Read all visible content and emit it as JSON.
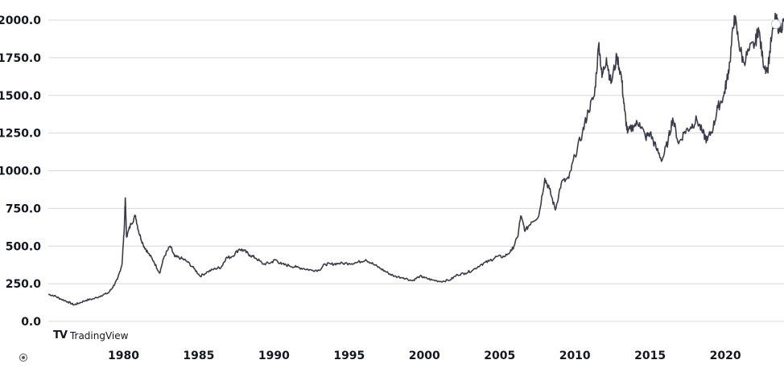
{
  "chart_data": {
    "type": "line",
    "title": "",
    "xlabel": "",
    "ylabel": "",
    "grid": true,
    "xlim": [
      1975.0,
      2023.9
    ],
    "ylim": [
      0,
      2000
    ],
    "y_ticks": [
      "0.0",
      "250.0",
      "500.0",
      "750.0",
      "1000.0",
      "1250.0",
      "1500.0",
      "1750.0",
      "2000.0"
    ],
    "y_tick_values": [
      0,
      250,
      500,
      750,
      1000,
      1250,
      1500,
      1750,
      2000
    ],
    "x_ticks": [
      "1980",
      "1985",
      "1990",
      "1995",
      "2000",
      "2005",
      "2010",
      "2015",
      "2020"
    ],
    "x_tick_values": [
      1980,
      1985,
      1990,
      1995,
      2000,
      2005,
      2010,
      2015,
      2020
    ],
    "series": [
      {
        "color": "#3a3d49",
        "points": [
          [
            1975.0,
            180
          ],
          [
            1975.4,
            170
          ],
          [
            1975.8,
            150
          ],
          [
            1976.3,
            130
          ],
          [
            1976.7,
            110
          ],
          [
            1977.0,
            120
          ],
          [
            1977.5,
            140
          ],
          [
            1978.0,
            150
          ],
          [
            1978.5,
            170
          ],
          [
            1979.0,
            190
          ],
          [
            1979.3,
            230
          ],
          [
            1979.6,
            280
          ],
          [
            1979.9,
            380
          ],
          [
            1980.05,
            620
          ],
          [
            1980.12,
            820
          ],
          [
            1980.2,
            560
          ],
          [
            1980.5,
            650
          ],
          [
            1980.8,
            700
          ],
          [
            1981.0,
            600
          ],
          [
            1981.3,
            510
          ],
          [
            1981.6,
            460
          ],
          [
            1982.0,
            400
          ],
          [
            1982.4,
            320
          ],
          [
            1982.7,
            430
          ],
          [
            1983.1,
            500
          ],
          [
            1983.4,
            430
          ],
          [
            1983.8,
            420
          ],
          [
            1984.2,
            400
          ],
          [
            1984.7,
            350
          ],
          [
            1985.1,
            300
          ],
          [
            1985.6,
            330
          ],
          [
            1986.1,
            350
          ],
          [
            1986.5,
            360
          ],
          [
            1986.8,
            420
          ],
          [
            1987.2,
            430
          ],
          [
            1987.7,
            480
          ],
          [
            1988.0,
            470
          ],
          [
            1988.4,
            440
          ],
          [
            1988.8,
            420
          ],
          [
            1989.3,
            380
          ],
          [
            1989.8,
            390
          ],
          [
            1990.1,
            410
          ],
          [
            1990.5,
            380
          ],
          [
            1991.0,
            370
          ],
          [
            1991.5,
            360
          ],
          [
            1992.0,
            350
          ],
          [
            1992.5,
            340
          ],
          [
            1993.0,
            340
          ],
          [
            1993.4,
            380
          ],
          [
            1993.8,
            380
          ],
          [
            1994.3,
            385
          ],
          [
            1995.0,
            385
          ],
          [
            1995.5,
            390
          ],
          [
            1996.1,
            410
          ],
          [
            1996.6,
            380
          ],
          [
            1997.1,
            350
          ],
          [
            1997.6,
            320
          ],
          [
            1998.0,
            300
          ],
          [
            1998.6,
            290
          ],
          [
            1999.2,
            270
          ],
          [
            1999.7,
            300
          ],
          [
            2000.0,
            290
          ],
          [
            2000.5,
            275
          ],
          [
            2001.1,
            265
          ],
          [
            2001.7,
            275
          ],
          [
            2002.2,
            310
          ],
          [
            2002.7,
            320
          ],
          [
            2003.2,
            340
          ],
          [
            2003.8,
            380
          ],
          [
            2004.3,
            400
          ],
          [
            2004.8,
            430
          ],
          [
            2005.3,
            430
          ],
          [
            2005.8,
            470
          ],
          [
            2006.2,
            560
          ],
          [
            2006.4,
            700
          ],
          [
            2006.7,
            600
          ],
          [
            2007.1,
            660
          ],
          [
            2007.6,
            700
          ],
          [
            2008.0,
            950
          ],
          [
            2008.3,
            880
          ],
          [
            2008.7,
            740
          ],
          [
            2009.1,
            920
          ],
          [
            2009.6,
            950
          ],
          [
            2010.0,
            1100
          ],
          [
            2010.5,
            1250
          ],
          [
            2010.9,
            1400
          ],
          [
            2011.3,
            1500
          ],
          [
            2011.6,
            1850
          ],
          [
            2011.8,
            1620
          ],
          [
            2012.1,
            1750
          ],
          [
            2012.4,
            1580
          ],
          [
            2012.8,
            1760
          ],
          [
            2013.1,
            1620
          ],
          [
            2013.3,
            1400
          ],
          [
            2013.5,
            1250
          ],
          [
            2013.9,
            1300
          ],
          [
            2014.3,
            1320
          ],
          [
            2014.7,
            1220
          ],
          [
            2015.0,
            1250
          ],
          [
            2015.4,
            1150
          ],
          [
            2015.8,
            1070
          ],
          [
            2016.2,
            1200
          ],
          [
            2016.5,
            1350
          ],
          [
            2016.9,
            1180
          ],
          [
            2017.3,
            1260
          ],
          [
            2017.7,
            1290
          ],
          [
            2018.1,
            1340
          ],
          [
            2018.5,
            1250
          ],
          [
            2018.8,
            1200
          ],
          [
            2019.2,
            1290
          ],
          [
            2019.5,
            1420
          ],
          [
            2019.9,
            1500
          ],
          [
            2020.1,
            1600
          ],
          [
            2020.3,
            1720
          ],
          [
            2020.6,
            2030
          ],
          [
            2020.9,
            1850
          ],
          [
            2021.2,
            1720
          ],
          [
            2021.6,
            1800
          ],
          [
            2022.0,
            1850
          ],
          [
            2022.2,
            1950
          ],
          [
            2022.5,
            1730
          ],
          [
            2022.8,
            1660
          ],
          [
            2023.1,
            1900
          ],
          [
            2023.35,
            2010
          ],
          [
            2023.6,
            1940
          ],
          [
            2023.9,
            1990
          ]
        ]
      }
    ]
  },
  "branding": {
    "logo_glyph": "TV",
    "name": "TradingView"
  }
}
